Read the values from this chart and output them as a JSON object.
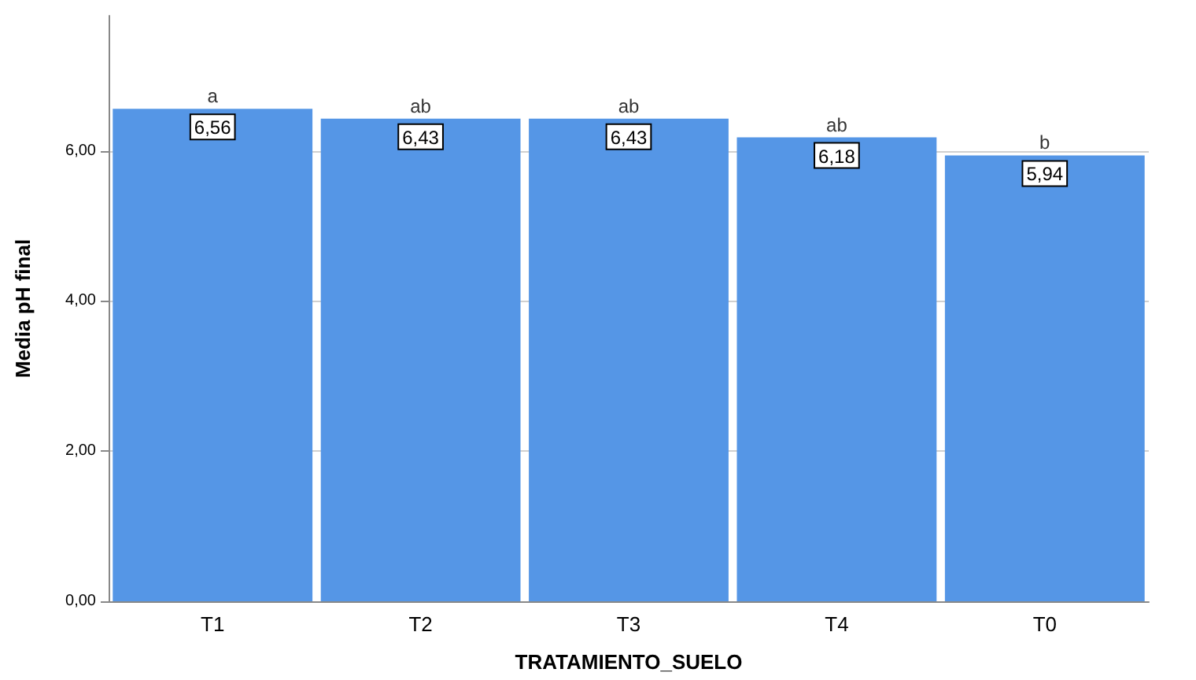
{
  "chart_data": {
    "type": "bar",
    "xlabel": "TRATAMIENTO_SUELO",
    "ylabel": "Media pH final",
    "categories": [
      "T1",
      "T2",
      "T3",
      "T4",
      "T0"
    ],
    "values": [
      6.56,
      6.43,
      6.43,
      6.18,
      5.94
    ],
    "value_labels": [
      "6,56",
      "6,43",
      "6,43",
      "6,18",
      "5,94"
    ],
    "color": "#5596e6",
    "ylim": [
      0,
      7.8
    ],
    "yticks": [
      {
        "value": 0,
        "label": "0,00"
      },
      {
        "value": 2,
        "label": "2,00"
      },
      {
        "value": 4,
        "label": "4,00"
      },
      {
        "value": 6,
        "label": "6,00"
      }
    ],
    "grid": "y",
    "annotations": [
      {
        "text": "a",
        "x": "T1",
        "y": 6.56
      },
      {
        "text": "ab",
        "x": "T2",
        "y": 6.43
      },
      {
        "text": "ab",
        "x": "T3",
        "y": 6.43
      },
      {
        "text": "ab",
        "x": "T4",
        "y": 6.18
      },
      {
        "text": "b",
        "x": "T0",
        "y": 5.94
      }
    ]
  }
}
